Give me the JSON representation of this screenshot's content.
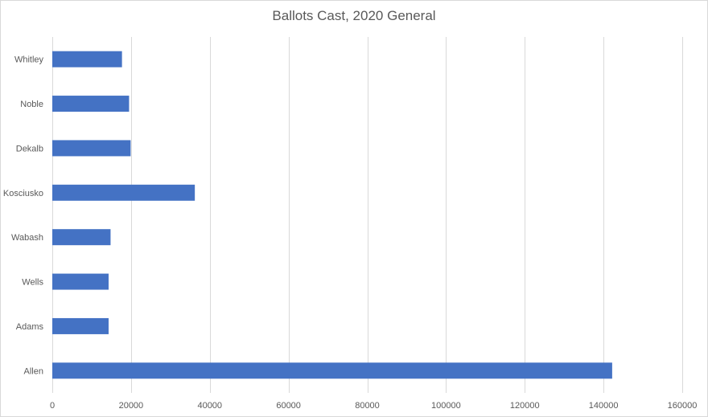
{
  "chart_data": {
    "type": "bar",
    "orientation": "horizontal",
    "title": "Ballots Cast, 2020 General",
    "xlabel": "",
    "ylabel": "",
    "categories": [
      "Whitley",
      "Noble",
      "Dekalb",
      "Kosciusko",
      "Wabash",
      "Wells",
      "Adams",
      "Allen"
    ],
    "values": [
      17700,
      19500,
      19900,
      36200,
      14800,
      14300,
      14300,
      142200
    ],
    "xlim": [
      0,
      160000
    ],
    "xticks": [
      0,
      20000,
      40000,
      60000,
      80000,
      100000,
      120000,
      140000,
      160000
    ],
    "grid": "vertical",
    "legend": "none",
    "bar_color": "#4472C4",
    "grid_color": "#d9d9d9",
    "text_color": "#595959"
  }
}
